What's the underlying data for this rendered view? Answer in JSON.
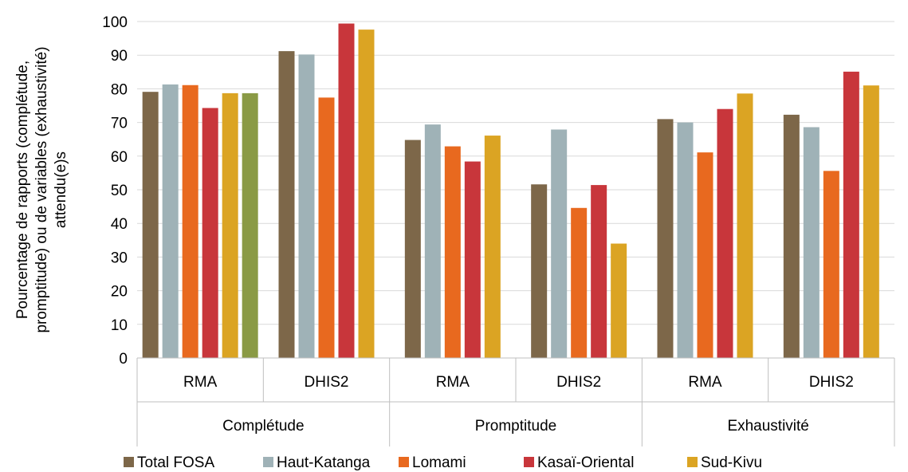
{
  "chart_data": {
    "type": "bar",
    "ylabel_lines": [
      "Pourcentage de rapports (complétude,",
      "promptitude) ou de variables (exhaustivité)",
      "attendu(e)s"
    ],
    "ylim": [
      0,
      100
    ],
    "yticks": [
      0,
      10,
      20,
      30,
      40,
      50,
      60,
      70,
      80,
      90,
      100
    ],
    "grid": true,
    "legend_position": "bottom",
    "groups": [
      "Complétude",
      "Promptitude",
      "Exhaustivité"
    ],
    "categories": [
      "RMA",
      "DHIS2",
      "RMA",
      "DHIS2",
      "RMA",
      "DHIS2"
    ],
    "series": [
      {
        "name": "Total FOSA",
        "color": "#7d6749",
        "values": [
          79.1,
          91.2,
          64.8,
          51.6,
          71.0,
          72.3
        ]
      },
      {
        "name": "Haut-Katanga",
        "color": "#9fb2b7",
        "values": [
          81.3,
          90.2,
          69.4,
          67.9,
          70.0,
          68.6
        ]
      },
      {
        "name": "Lomami",
        "color": "#e8691f",
        "values": [
          81.1,
          77.4,
          62.9,
          44.6,
          61.1,
          55.6
        ]
      },
      {
        "name": "Kasaï-Oriental",
        "color": "#c8363b",
        "values": [
          74.3,
          99.4,
          58.4,
          51.4,
          74.0,
          85.1
        ]
      },
      {
        "name": "Sud-Kivu",
        "color": "#dba423",
        "values": [
          78.7,
          97.6,
          66.1,
          34.0,
          78.6,
          81.0
        ]
      }
    ],
    "extra_bar": {
      "category_index": 0,
      "after_series": 4,
      "color": "#8a9a45",
      "value": 78.7
    }
  }
}
